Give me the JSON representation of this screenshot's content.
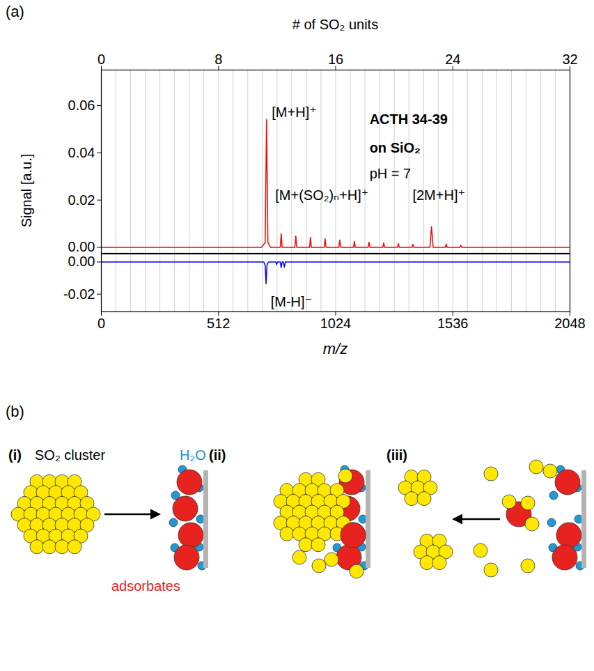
{
  "panel_label": "(a)",
  "chart_data": [
    {
      "type": "line",
      "x2_label": "# of SO₂ units",
      "x2lim": [
        0,
        32
      ],
      "x2ticks": [
        0,
        8,
        16,
        24,
        32
      ],
      "y_label": "Signal [a.u.]",
      "xlim": [
        0,
        2048
      ],
      "ylim": [
        -0.0025,
        0.075
      ],
      "yticks": [
        {
          "value": 0,
          "label": "0.00"
        },
        {
          "value": 0.02,
          "label": "0.02"
        },
        {
          "value": 0.04,
          "label": "0.04"
        },
        {
          "value": 0.06,
          "label": "0.06"
        }
      ],
      "tick_labels": "y",
      "grid": true,
      "gridlines": [
        0,
        64,
        128,
        192,
        256,
        320,
        384,
        448,
        512,
        576,
        640,
        704,
        768,
        832,
        896,
        960,
        1024,
        1088,
        1152,
        1216,
        1280,
        1344,
        1408,
        1472,
        1536,
        1600,
        1664,
        1728,
        1792,
        1856,
        1920,
        1984,
        2048
      ],
      "color": "#ff0000",
      "x": [
        0,
        700,
        716,
        722,
        728,
        740,
        782,
        786,
        790,
        846,
        850,
        854,
        910,
        914,
        918,
        974,
        978,
        982,
        1038,
        1042,
        1046,
        1102,
        1106,
        1110,
        1166,
        1170,
        1174,
        1230,
        1234,
        1238,
        1294,
        1298,
        1302,
        1358,
        1362,
        1366,
        1436,
        1443,
        1450,
        1503,
        1507,
        1511,
        1567,
        1571,
        1575,
        2048
      ],
      "values": [
        0,
        0,
        0.002,
        0.054,
        0.002,
        0,
        0,
        0.0058,
        0,
        0,
        0.0048,
        0,
        0,
        0.0042,
        0,
        0,
        0.0037,
        0,
        0,
        0.0031,
        0,
        0,
        0.0026,
        0,
        0,
        0.0022,
        0,
        0,
        0.0019,
        0,
        0,
        0.0016,
        0,
        0,
        0.0013,
        0,
        0,
        0.0088,
        0,
        0,
        0.0014,
        0,
        0,
        0.0009,
        0,
        0
      ],
      "annotations": [
        {
          "text": "[M+H]⁺",
          "x": 745,
          "y": 0.057
        },
        {
          "text": "[M+(SO₂)ₙ+H]⁺",
          "x": 760,
          "y": 0.022
        },
        {
          "text": "[2M+H]⁺",
          "x": 1360,
          "y": 0.022
        },
        {
          "text": "ACTH 34-39",
          "x": 1172,
          "y": 0.054,
          "font_weight": "bold"
        },
        {
          "text": "on SiO₂",
          "x": 1172,
          "y": 0.042,
          "font_weight": "bold"
        },
        {
          "text": "pH = 7",
          "x": 1172,
          "y": 0.031
        }
      ]
    },
    {
      "type": "line",
      "x_label": "m/z",
      "xlim": [
        0,
        2048
      ],
      "xticks": [
        0,
        512,
        1024,
        1536,
        2048
      ],
      "ylim": [
        -0.031,
        0.005
      ],
      "yticks": [
        {
          "value": 0,
          "label": "0.00"
        },
        {
          "value": -0.02,
          "label": "-0.02"
        }
      ],
      "grid": true,
      "gridlines": [
        0,
        64,
        128,
        192,
        256,
        320,
        384,
        448,
        512,
        576,
        640,
        704,
        768,
        832,
        896,
        960,
        1024,
        1088,
        1152,
        1216,
        1280,
        1344,
        1408,
        1472,
        1536,
        1600,
        1664,
        1728,
        1792,
        1856,
        1920,
        1984,
        2048
      ],
      "color": "#0000ff",
      "x": [
        0,
        710,
        716,
        720,
        724,
        730,
        762,
        766,
        770,
        782,
        786,
        790,
        796,
        800,
        804,
        2048
      ],
      "values": [
        0,
        0,
        -0.002,
        -0.0135,
        -0.002,
        0,
        0,
        -0.0015,
        0,
        0,
        -0.0035,
        0,
        0,
        -0.0032,
        0,
        0
      ],
      "annotations": [
        {
          "text": "[M-H]⁻",
          "x": 740,
          "y": -0.025
        }
      ]
    }
  ],
  "diagram": {
    "label": "(b)",
    "panels": [
      {
        "label": "(i)",
        "cluster_label": "SO₂ cluster",
        "water_label": "H₂O",
        "adsorbate_label": "adsorbates"
      },
      {
        "label": "(ii)"
      },
      {
        "label": "(iii)"
      }
    ]
  }
}
